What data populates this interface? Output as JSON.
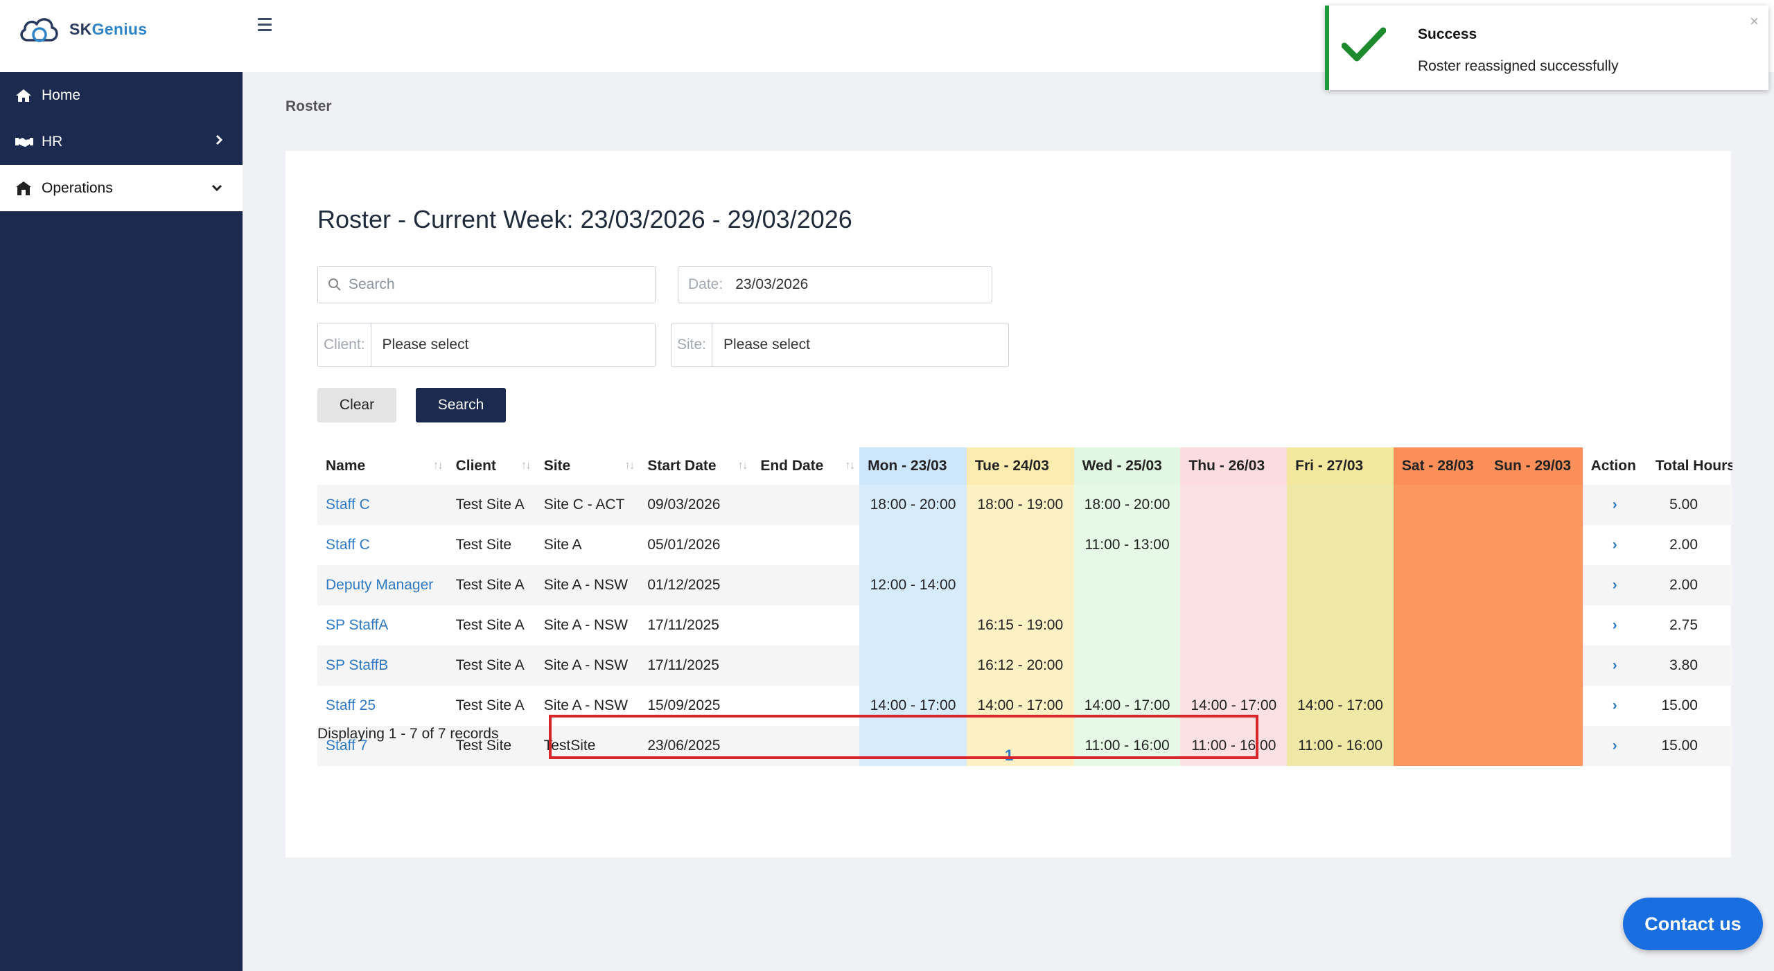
{
  "app": {
    "logo_text_sk": "SK",
    "logo_text_genius": "Genius"
  },
  "sidebar": {
    "items": [
      {
        "label": "Home",
        "icon": "home-icon"
      },
      {
        "label": "HR",
        "icon": "handshake-icon"
      },
      {
        "label": "Operations",
        "icon": "building-icon"
      }
    ]
  },
  "breadcrumb": "Roster",
  "page": {
    "title": "Roster - Current Week: 23/03/2026 - 29/03/2026"
  },
  "filters": {
    "search_placeholder": "Search",
    "date_label": "Date:",
    "date_value": "23/03/2026",
    "client_label": "Client:",
    "client_placeholder": "Please select",
    "site_label": "Site:",
    "site_placeholder": "Please select",
    "clear_label": "Clear",
    "search_label": "Search"
  },
  "table": {
    "columns": [
      "Name",
      "Client",
      "Site",
      "Start Date",
      "End Date",
      "Mon - 23/03",
      "Tue - 24/03",
      "Wed - 25/03",
      "Thu - 26/03",
      "Fri - 27/03",
      "Sat - 28/03",
      "Sun - 29/03",
      "Action",
      "Total Hours"
    ],
    "rows": [
      {
        "name": "Staff C",
        "client": "Test Site A",
        "site": "Site C - ACT",
        "start": "09/03/2026",
        "end": "",
        "mon": "18:00 - 20:00",
        "tue": "18:00 - 19:00",
        "wed": "18:00 - 20:00",
        "thu": "",
        "fri": "",
        "sat": "",
        "sun": "",
        "action": "›",
        "hours": "5.00"
      },
      {
        "name": "Staff C",
        "client": "Test Site",
        "site": "Site A",
        "start": "05/01/2026",
        "end": "",
        "mon": "",
        "tue": "",
        "wed": "11:00 - 13:00",
        "thu": "",
        "fri": "",
        "sat": "",
        "sun": "",
        "action": "›",
        "hours": "2.00"
      },
      {
        "name": "Deputy Manager",
        "client": "Test Site A",
        "site": "Site A - NSW",
        "start": "01/12/2025",
        "end": "",
        "mon": "12:00 - 14:00",
        "tue": "",
        "wed": "",
        "thu": "",
        "fri": "",
        "sat": "",
        "sun": "",
        "action": "›",
        "hours": "2.00"
      },
      {
        "name": "SP StaffA",
        "client": "Test Site A",
        "site": "Site A - NSW",
        "start": "17/11/2025",
        "end": "",
        "mon": "",
        "tue": "16:15 - 19:00",
        "wed": "",
        "thu": "",
        "fri": "",
        "sat": "",
        "sun": "",
        "action": "›",
        "hours": "2.75"
      },
      {
        "name": "SP StaffB",
        "client": "Test Site A",
        "site": "Site A - NSW",
        "start": "17/11/2025",
        "end": "",
        "mon": "",
        "tue": "16:12 - 20:00",
        "wed": "",
        "thu": "",
        "fri": "",
        "sat": "",
        "sun": "",
        "action": "›",
        "hours": "3.80"
      },
      {
        "name": "Staff 25",
        "client": "Test Site A",
        "site": "Site A - NSW",
        "start": "15/09/2025",
        "end": "",
        "mon": "14:00 - 17:00",
        "tue": "14:00 - 17:00",
        "wed": "14:00 - 17:00",
        "thu": "14:00 - 17:00",
        "fri": "14:00 - 17:00",
        "sat": "",
        "sun": "",
        "action": "›",
        "hours": "15.00"
      },
      {
        "name": "Staff 7",
        "client": "Test Site",
        "site": "TestSite",
        "start": "23/06/2025",
        "end": "",
        "mon": "",
        "tue": "",
        "wed": "11:00 - 16:00",
        "thu": "11:00 - 16:00",
        "fri": "11:00 - 16:00",
        "sat": "",
        "sun": "",
        "action": "›",
        "hours": "15.00"
      }
    ]
  },
  "footer": {
    "records": "Displaying 1 - 7 of 7 records",
    "page": "1"
  },
  "toast": {
    "title": "Success",
    "message": "Roster reassigned successfully",
    "close": "×"
  },
  "contact": {
    "label": "Contact us"
  },
  "colors": {
    "sidebar": "#1b2a4e",
    "link": "#2e79c4",
    "success": "#1e9a3c",
    "highlight": "#d9262b",
    "contact": "#1a6fe0"
  }
}
